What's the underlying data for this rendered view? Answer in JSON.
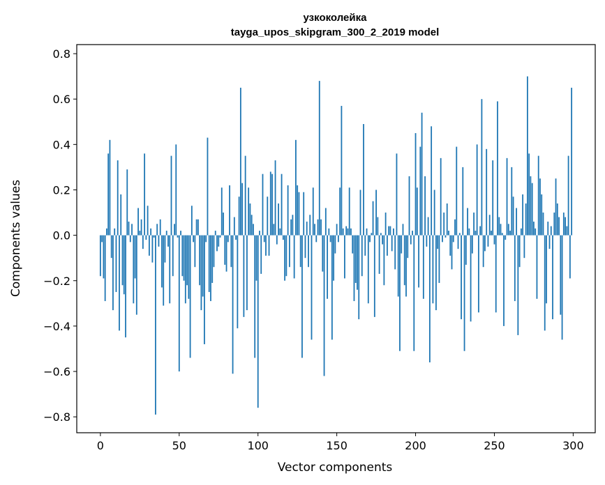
{
  "chart_data": {
    "type": "bar",
    "title": "узкоколейка",
    "subtitle": "tayga_upos_skipgram_300_2_2019 model",
    "xlabel": "Vector components",
    "ylabel": "Components values",
    "xlim": [
      -15,
      314
    ],
    "ylim": [
      -0.87,
      0.84
    ],
    "xticks": [
      0,
      50,
      100,
      150,
      200,
      250,
      300
    ],
    "yticks": [
      -0.8,
      -0.6,
      -0.4,
      -0.2,
      0.0,
      0.2,
      0.4,
      0.6,
      0.8
    ],
    "ytick_labels": [
      "−0.8",
      "−0.6",
      "−0.4",
      "−0.2",
      "0.0",
      "0.2",
      "0.4",
      "0.6",
      "0.8"
    ],
    "grid": false,
    "bar_color": "#1f77b4",
    "values": [
      -0.18,
      -0.03,
      -0.19,
      -0.29,
      0.03,
      0.36,
      0.42,
      -0.1,
      -0.33,
      0.03,
      -0.25,
      0.33,
      -0.42,
      0.18,
      -0.22,
      -0.26,
      -0.45,
      0.29,
      0.06,
      -0.03,
      0.05,
      -0.3,
      -0.19,
      -0.35,
      0.12,
      0.02,
      0.07,
      -0.06,
      0.36,
      -0.02,
      0.13,
      -0.09,
      0.03,
      -0.12,
      -0.01,
      -0.79,
      0.05,
      -0.05,
      0.07,
      -0.23,
      -0.31,
      -0.12,
      0.02,
      -0.05,
      -0.3,
      0.35,
      -0.18,
      0.05,
      0.4,
      -0.01,
      -0.6,
      0.02,
      -0.18,
      -0.2,
      -0.3,
      -0.22,
      -0.28,
      -0.54,
      0.13,
      -0.03,
      -0.14,
      0.07,
      0.07,
      -0.22,
      -0.33,
      -0.27,
      -0.48,
      -0.03,
      0.43,
      -0.25,
      -0.29,
      -0.21,
      -0.14,
      0.02,
      -0.07,
      -0.05,
      -0.01,
      0.21,
      0.1,
      -0.13,
      -0.16,
      -0.03,
      0.22,
      -0.14,
      -0.61,
      0.08,
      -0.02,
      -0.41,
      0.17,
      0.65,
      0.23,
      -0.36,
      0.35,
      -0.33,
      0.21,
      0.14,
      0.09,
      0.05,
      -0.54,
      -0.2,
      -0.76,
      0.02,
      -0.17,
      0.27,
      -0.03,
      -0.09,
      0.17,
      -0.09,
      0.28,
      0.27,
      0.05,
      0.33,
      -0.04,
      0.14,
      0.03,
      0.27,
      -0.02,
      -0.2,
      -0.18,
      0.22,
      -0.14,
      0.07,
      0.09,
      -0.19,
      0.42,
      0.22,
      0.19,
      -0.14,
      -0.54,
      0.19,
      -0.1,
      0.06,
      -0.14,
      0.09,
      -0.46,
      0.21,
      0.05,
      -0.03,
      0.07,
      0.68,
      0.07,
      -0.16,
      -0.62,
      0.12,
      -0.28,
      0.03,
      -0.03,
      -0.46,
      -0.2,
      -0.08,
      0.05,
      -0.03,
      0.21,
      0.57,
      0.03,
      -0.19,
      0.04,
      0.03,
      0.21,
      0.03,
      -0.08,
      -0.29,
      -0.21,
      -0.24,
      -0.37,
      0.2,
      -0.18,
      0.49,
      -0.09,
      0.03,
      -0.3,
      -0.03,
      0.01,
      0.15,
      -0.36,
      0.2,
      0.08,
      -0.17,
      0.01,
      -0.04,
      -0.22,
      0.1,
      -0.09,
      0.04,
      0.04,
      -0.07,
      0.03,
      -0.15,
      0.36,
      -0.27,
      -0.51,
      -0.08,
      0.05,
      -0.22,
      -0.27,
      -0.1,
      0.26,
      -0.04,
      0.02,
      -0.51,
      0.45,
      0.21,
      -0.23,
      0.39,
      0.54,
      -0.28,
      0.26,
      -0.05,
      0.08,
      -0.56,
      0.48,
      -0.3,
      0.2,
      -0.33,
      -0.06,
      -0.21,
      0.34,
      -0.03,
      0.1,
      -0.01,
      0.14,
      0.02,
      -0.09,
      -0.15,
      -0.03,
      0.07,
      0.39,
      -0.06,
      0.01,
      -0.37,
      0.3,
      -0.51,
      -0.13,
      0.12,
      0.03,
      -0.38,
      -0.08,
      0.1,
      0.02,
      0.4,
      -0.34,
      0.04,
      0.6,
      -0.14,
      -0.07,
      0.38,
      -0.05,
      0.09,
      0.02,
      0.33,
      -0.04,
      -0.34,
      0.59,
      0.08,
      0.05,
      0.01,
      -0.4,
      -0.02,
      0.34,
      0.05,
      0.02,
      0.3,
      0.17,
      -0.29,
      0.12,
      -0.44,
      -0.14,
      0.03,
      0.18,
      -0.1,
      0.14,
      0.7,
      0.36,
      0.26,
      0.23,
      0.06,
      0.03,
      -0.28,
      0.35,
      0.25,
      0.18,
      0.1,
      -0.42,
      -0.3,
      0.06,
      -0.06,
      0.04,
      -0.37,
      0.1,
      0.25,
      0.14,
      0.08,
      -0.35,
      -0.46,
      0.1,
      0.08,
      0.04,
      0.35,
      -0.19,
      0.65
    ]
  }
}
